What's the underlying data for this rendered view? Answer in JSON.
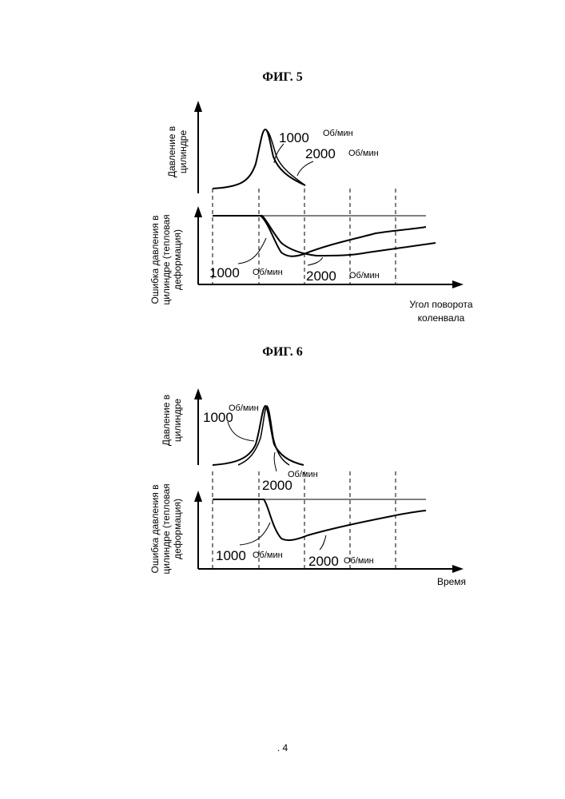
{
  "figures": [
    {
      "title": "ФИГ. 5",
      "top_ylabel_line1": "Давление в",
      "top_ylabel_line2": "цилиндре",
      "bottom_ylabel_line1": "Ошибка давления в",
      "bottom_ylabel_line2": "цилиндре (тепловая",
      "bottom_ylabel_line3": "деформация)",
      "xlabel_line1": "Угол поворота",
      "xlabel_line2": "коленвала",
      "top_curve1_label": "1000",
      "top_curve1_unit": "Об/мин",
      "top_curve2_label": "2000",
      "top_curve2_unit": "Об/мин",
      "bottom_curve1_label": "1000",
      "bottom_curve1_unit": "Об/мин",
      "bottom_curve2_label": "2000",
      "bottom_curve2_unit": "Об/мин"
    },
    {
      "title": "ФИГ. 6",
      "top_ylabel_line1": "Давление в",
      "top_ylabel_line2": "цилиндре",
      "bottom_ylabel_line1": "Ошибка давления в",
      "bottom_ylabel_line2": "цилиндре (тепловая",
      "bottom_ylabel_line3": "деформация)",
      "xlabel": "Время",
      "top_curve1_label": "1000",
      "top_curve1_unit": "Об/мин",
      "top_curve2_label": "2000",
      "top_curve2_unit": "Об/мин",
      "bottom_curve1_label": "1000",
      "bottom_curve1_unit": "Об/мин",
      "bottom_curve2_label": "2000",
      "bottom_curve2_unit": "Об/мин"
    }
  ],
  "page_number": ". 4"
}
